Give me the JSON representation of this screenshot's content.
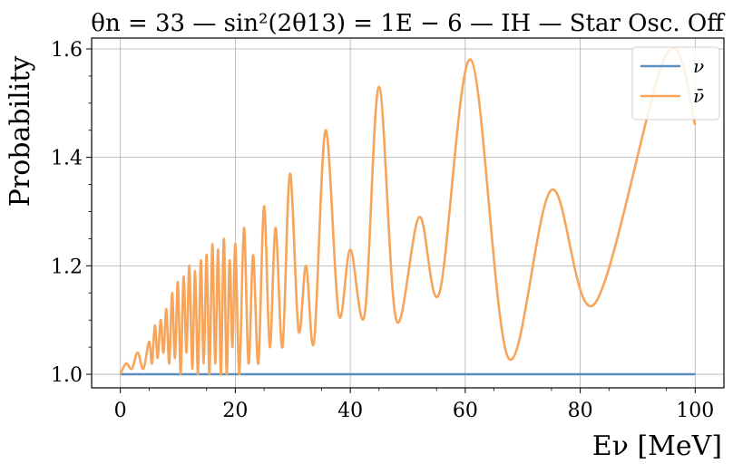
{
  "chart_data": {
    "type": "line",
    "title": "θn = 33 — sin²(2θ13) = 1E − 6 — IH — Star Osc. Off",
    "xlabel": "Eν [MeV]",
    "ylabel": "Probability",
    "xlim": [
      -5,
      105
    ],
    "ylim": [
      0.975,
      1.62
    ],
    "x_ticks": [
      0,
      20,
      40,
      60,
      80,
      100
    ],
    "x_tick_labels": [
      "0",
      "20",
      "40",
      "60",
      "80",
      "100"
    ],
    "y_ticks": [
      1.0,
      1.2,
      1.4,
      1.6
    ],
    "y_tick_labels": [
      "1.0",
      "1.2",
      "1.4",
      "1.6"
    ],
    "grid": true,
    "legend_position": "top-right",
    "series": [
      {
        "name": "ν",
        "color": "#5b8fc0",
        "x": [
          0,
          100
        ],
        "y": [
          1.0,
          1.0
        ]
      },
      {
        "name": "ν̄",
        "color": "#f7a55a",
        "x": [
          0,
          1,
          2,
          3,
          4,
          5,
          5.5,
          6,
          6.5,
          7,
          7.5,
          8,
          8.5,
          9,
          9.5,
          10,
          10.5,
          11,
          11.5,
          12,
          12.5,
          13,
          13.5,
          14,
          14.5,
          15,
          15.5,
          16,
          16.5,
          17,
          17.5,
          18,
          18.5,
          19,
          19.5,
          20,
          20.7,
          21.5,
          22.3,
          23.1,
          24,
          25,
          26,
          27,
          28.2,
          29.5,
          31,
          32.3,
          33.7,
          35.7,
          38,
          40,
          42.5,
          45,
          48,
          52,
          55.5,
          61,
          67.5,
          75,
          82.5,
          95,
          100
        ],
        "y": [
          1.0,
          1.02,
          1.01,
          1.04,
          1.01,
          1.06,
          1.02,
          1.09,
          1.03,
          1.1,
          1.04,
          1.12,
          1.02,
          1.15,
          1.03,
          1.17,
          1.0,
          1.18,
          1.04,
          1.2,
          1.01,
          1.19,
          1.0,
          1.21,
          1.02,
          1.22,
          1.0,
          1.24,
          1.02,
          1.23,
          1.0,
          1.25,
          1.0,
          1.21,
          1.05,
          1.24,
          1.0,
          1.27,
          1.02,
          1.22,
          1.02,
          1.31,
          1.05,
          1.27,
          1.05,
          1.37,
          1.08,
          1.2,
          1.06,
          1.45,
          1.11,
          1.23,
          1.11,
          1.53,
          1.1,
          1.29,
          1.15,
          1.58,
          1.03,
          1.34,
          1.13,
          1.59,
          1.46
        ]
      }
    ]
  }
}
